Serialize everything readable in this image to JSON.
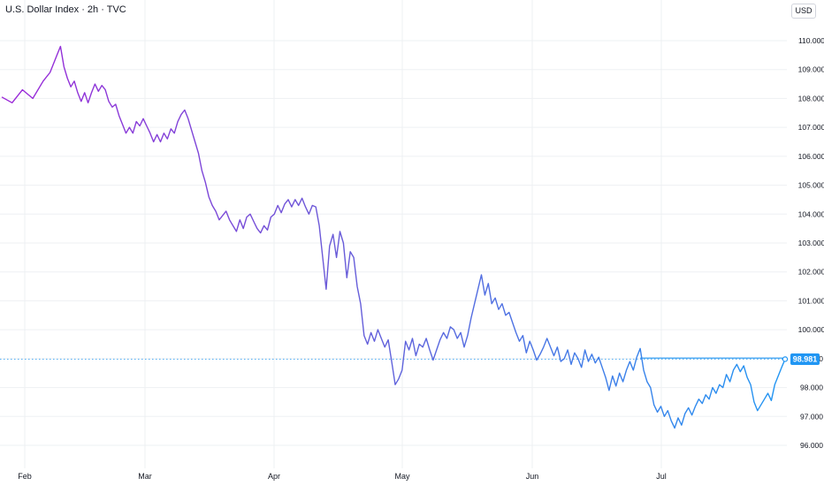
{
  "header": {
    "title": "U.S. Dollar Index · 2h · TVC",
    "currency": "USD"
  },
  "chart_data": {
    "type": "line",
    "title": "U.S. Dollar Index · 2h · TVC",
    "xlabel": "",
    "ylabel": "",
    "x_ticks": [
      "Feb",
      "Mar",
      "Apr",
      "May",
      "Jun",
      "Jul"
    ],
    "y_ticks": [
      "96.000",
      "97.000",
      "98.000",
      "99.000",
      "100.000",
      "101.000",
      "102.000",
      "103.000",
      "104.000",
      "105.000",
      "106.000",
      "107.000",
      "108.000",
      "109.000",
      "110.000"
    ],
    "ylim": [
      95.6,
      111.2
    ],
    "grid": true,
    "gradient_colors": [
      "#9c27d8",
      "#6a5ad8",
      "#2196f3"
    ],
    "price_line_color": "#2196f3",
    "last_value": "98.981",
    "reference_level": 99.02,
    "series": [
      {
        "values": [
          [
            0,
            108.05
          ],
          [
            3,
            107.85
          ],
          [
            6,
            108.3
          ],
          [
            9,
            108.0
          ],
          [
            12,
            108.6
          ],
          [
            14,
            108.9
          ],
          [
            16,
            109.5
          ],
          [
            17,
            109.8
          ],
          [
            18,
            109.1
          ],
          [
            19,
            108.7
          ],
          [
            20,
            108.4
          ],
          [
            21,
            108.6
          ],
          [
            22,
            108.2
          ],
          [
            23,
            107.9
          ],
          [
            24,
            108.2
          ],
          [
            25,
            107.85
          ],
          [
            26,
            108.2
          ],
          [
            27,
            108.5
          ],
          [
            28,
            108.25
          ],
          [
            29,
            108.45
          ],
          [
            30,
            108.3
          ],
          [
            31,
            107.9
          ],
          [
            32,
            107.7
          ],
          [
            33,
            107.8
          ],
          [
            34,
            107.4
          ],
          [
            35,
            107.1
          ],
          [
            36,
            106.8
          ],
          [
            37,
            107.0
          ],
          [
            38,
            106.8
          ],
          [
            39,
            107.2
          ],
          [
            40,
            107.05
          ],
          [
            41,
            107.3
          ],
          [
            42,
            107.05
          ],
          [
            43,
            106.8
          ],
          [
            44,
            106.5
          ],
          [
            45,
            106.75
          ],
          [
            46,
            106.5
          ],
          [
            47,
            106.8
          ],
          [
            48,
            106.6
          ],
          [
            49,
            106.95
          ],
          [
            50,
            106.8
          ],
          [
            51,
            107.2
          ],
          [
            52,
            107.45
          ],
          [
            53,
            107.6
          ],
          [
            54,
            107.3
          ],
          [
            55,
            106.9
          ],
          [
            56,
            106.5
          ],
          [
            57,
            106.1
          ],
          [
            58,
            105.5
          ],
          [
            59,
            105.1
          ],
          [
            60,
            104.6
          ],
          [
            61,
            104.3
          ],
          [
            62,
            104.1
          ],
          [
            63,
            103.8
          ],
          [
            64,
            103.95
          ],
          [
            65,
            104.1
          ],
          [
            66,
            103.8
          ],
          [
            67,
            103.6
          ],
          [
            68,
            103.4
          ],
          [
            69,
            103.8
          ],
          [
            70,
            103.5
          ],
          [
            71,
            103.9
          ],
          [
            72,
            104.0
          ],
          [
            73,
            103.75
          ],
          [
            74,
            103.5
          ],
          [
            75,
            103.35
          ],
          [
            76,
            103.6
          ],
          [
            77,
            103.45
          ],
          [
            78,
            103.9
          ],
          [
            79,
            104.0
          ],
          [
            80,
            104.3
          ],
          [
            81,
            104.05
          ],
          [
            82,
            104.35
          ],
          [
            83,
            104.5
          ],
          [
            84,
            104.25
          ],
          [
            85,
            104.5
          ],
          [
            86,
            104.3
          ],
          [
            87,
            104.55
          ],
          [
            88,
            104.25
          ],
          [
            89,
            104.0
          ],
          [
            90,
            104.3
          ],
          [
            91,
            104.25
          ],
          [
            92,
            103.6
          ],
          [
            93,
            102.5
          ],
          [
            94,
            101.4
          ],
          [
            95,
            102.9
          ],
          [
            96,
            103.3
          ],
          [
            97,
            102.5
          ],
          [
            98,
            103.4
          ],
          [
            99,
            103.0
          ],
          [
            100,
            101.8
          ],
          [
            101,
            102.7
          ],
          [
            102,
            102.5
          ],
          [
            103,
            101.5
          ],
          [
            104,
            100.9
          ],
          [
            105,
            99.8
          ],
          [
            106,
            99.5
          ],
          [
            107,
            99.9
          ],
          [
            108,
            99.6
          ],
          [
            109,
            100.0
          ],
          [
            110,
            99.7
          ],
          [
            111,
            99.4
          ],
          [
            112,
            99.65
          ],
          [
            113,
            98.9
          ],
          [
            114,
            98.1
          ],
          [
            115,
            98.3
          ],
          [
            116,
            98.6
          ],
          [
            117,
            99.6
          ],
          [
            118,
            99.3
          ],
          [
            119,
            99.7
          ],
          [
            120,
            99.1
          ],
          [
            121,
            99.5
          ],
          [
            122,
            99.4
          ],
          [
            123,
            99.7
          ],
          [
            124,
            99.3
          ],
          [
            125,
            98.95
          ],
          [
            126,
            99.3
          ],
          [
            127,
            99.65
          ],
          [
            128,
            99.9
          ],
          [
            129,
            99.7
          ],
          [
            130,
            100.1
          ],
          [
            131,
            100.0
          ],
          [
            132,
            99.7
          ],
          [
            133,
            99.9
          ],
          [
            134,
            99.4
          ],
          [
            135,
            99.8
          ],
          [
            136,
            100.4
          ],
          [
            137,
            100.9
          ],
          [
            138,
            101.4
          ],
          [
            139,
            101.9
          ],
          [
            140,
            101.2
          ],
          [
            141,
            101.6
          ],
          [
            142,
            100.9
          ],
          [
            143,
            101.1
          ],
          [
            144,
            100.7
          ],
          [
            145,
            100.9
          ],
          [
            146,
            100.5
          ],
          [
            147,
            100.6
          ],
          [
            148,
            100.25
          ],
          [
            149,
            99.9
          ],
          [
            150,
            99.6
          ],
          [
            151,
            99.8
          ],
          [
            152,
            99.2
          ],
          [
            153,
            99.6
          ],
          [
            154,
            99.3
          ],
          [
            155,
            98.95
          ],
          [
            156,
            99.15
          ],
          [
            157,
            99.4
          ],
          [
            158,
            99.7
          ],
          [
            159,
            99.4
          ],
          [
            160,
            99.1
          ],
          [
            161,
            99.4
          ],
          [
            162,
            98.9
          ],
          [
            163,
            99.0
          ],
          [
            164,
            99.3
          ],
          [
            165,
            98.8
          ],
          [
            166,
            99.2
          ],
          [
            167,
            99.0
          ],
          [
            168,
            98.7
          ],
          [
            169,
            99.3
          ],
          [
            170,
            98.9
          ],
          [
            171,
            99.15
          ],
          [
            172,
            98.85
          ],
          [
            173,
            99.05
          ],
          [
            174,
            98.7
          ],
          [
            175,
            98.35
          ],
          [
            176,
            97.9
          ],
          [
            177,
            98.4
          ],
          [
            178,
            98.05
          ],
          [
            179,
            98.5
          ],
          [
            180,
            98.2
          ],
          [
            181,
            98.6
          ],
          [
            182,
            98.9
          ],
          [
            183,
            98.6
          ],
          [
            184,
            99.05
          ],
          [
            185,
            99.35
          ],
          [
            186,
            98.6
          ],
          [
            187,
            98.2
          ],
          [
            188,
            98.0
          ],
          [
            189,
            97.4
          ],
          [
            190,
            97.15
          ],
          [
            191,
            97.35
          ],
          [
            192,
            97.0
          ],
          [
            193,
            97.2
          ],
          [
            194,
            96.85
          ],
          [
            195,
            96.6
          ],
          [
            196,
            96.95
          ],
          [
            197,
            96.7
          ],
          [
            198,
            97.1
          ],
          [
            199,
            97.3
          ],
          [
            200,
            97.05
          ],
          [
            201,
            97.35
          ],
          [
            202,
            97.6
          ],
          [
            203,
            97.45
          ],
          [
            204,
            97.75
          ],
          [
            205,
            97.6
          ],
          [
            206,
            98.0
          ],
          [
            207,
            97.8
          ],
          [
            208,
            98.1
          ],
          [
            209,
            98.0
          ],
          [
            210,
            98.45
          ],
          [
            211,
            98.2
          ],
          [
            212,
            98.6
          ],
          [
            213,
            98.8
          ],
          [
            214,
            98.55
          ],
          [
            215,
            98.75
          ],
          [
            216,
            98.35
          ],
          [
            217,
            98.1
          ],
          [
            218,
            97.5
          ],
          [
            219,
            97.2
          ],
          [
            220,
            97.4
          ],
          [
            221,
            97.6
          ],
          [
            222,
            97.8
          ],
          [
            223,
            97.55
          ],
          [
            224,
            98.1
          ],
          [
            225,
            98.4
          ],
          [
            226,
            98.7
          ],
          [
            227,
            98.981
          ]
        ]
      }
    ]
  }
}
